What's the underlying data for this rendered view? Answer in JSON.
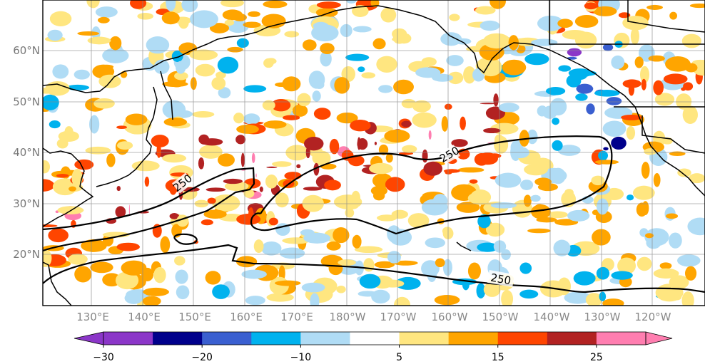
{
  "map": {
    "type": "contour-anomaly-map",
    "lat_labels": [
      "60°N",
      "50°N",
      "40°N",
      "30°N",
      "20°N"
    ],
    "lon_labels": [
      "130°E",
      "140°E",
      "150°E",
      "160°E",
      "170°E",
      "180°W",
      "170°W",
      "160°W",
      "150°W",
      "140°W",
      "130°W",
      "120°W"
    ],
    "contour_labels": [
      "250",
      "250",
      "250"
    ],
    "colorbar": {
      "levels": [
        -30,
        -25,
        -20,
        -15,
        -10,
        -5,
        5,
        10,
        15,
        20,
        25
      ],
      "tick_labels": [
        "−30",
        "−20",
        "−10",
        "5",
        "15",
        "25"
      ],
      "colors": [
        "#8b36c8",
        "#00008b",
        "#3a5fd0",
        "#00b2ee",
        "#b0dcf5",
        "#ffffff",
        "#ffe680",
        "#ffa500",
        "#ff4500",
        "#b22222",
        "#ff7eb0"
      ],
      "extend": "both"
    }
  }
}
